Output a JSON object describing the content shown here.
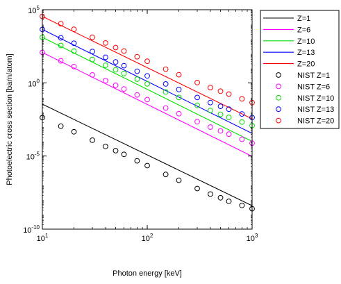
{
  "chart_data": {
    "type": "line",
    "xlabel": "Photon energy [keV]",
    "ylabel": "Photoelectric cross section [barn/atom]",
    "xscale": "log",
    "yscale": "log",
    "xlim": [
      10,
      1000
    ],
    "ylim": [
      1e-10,
      100000
    ],
    "grid": false,
    "legend_position": "outside-top-right",
    "x_ticks": [
      {
        "value": 10,
        "base": "10",
        "exp": "1"
      },
      {
        "value": 100,
        "base": "10",
        "exp": "2"
      },
      {
        "value": 1000,
        "base": "10",
        "exp": "3"
      }
    ],
    "y_ticks": [
      {
        "value": 1e-10,
        "base": "10",
        "exp": "-10"
      },
      {
        "value": 1e-05,
        "base": "10",
        "exp": "-5"
      },
      {
        "value": 1,
        "base": "10",
        "exp": "0"
      },
      {
        "value": 100000,
        "base": "10",
        "exp": "5"
      }
    ],
    "model_series": [
      {
        "name": "Z=1",
        "color": "#000000",
        "x": [
          10,
          1000
        ],
        "y": [
          0.035,
          4e-09
        ]
      },
      {
        "name": "Z=6",
        "color": "#ff00ff",
        "x": [
          10,
          1000
        ],
        "y": [
          120,
          9.5e-06
        ]
      },
      {
        "name": "Z=10",
        "color": "#00dd00",
        "x": [
          10,
          1000
        ],
        "y": [
          1300,
          0.0001
        ]
      },
      {
        "name": "Z=13",
        "color": "#0000ff",
        "x": [
          10,
          1000
        ],
        "y": [
          4500,
          0.00035
        ]
      },
      {
        "name": "Z=20",
        "color": "#ff0000",
        "x": [
          10,
          1000
        ],
        "y": [
          35000,
          0.0035
        ]
      }
    ],
    "nist_series": [
      {
        "name": "NIST Z=1",
        "color": "#000000",
        "x": [
          10,
          15,
          20,
          30,
          40,
          50,
          60,
          80,
          100,
          150,
          200,
          300,
          400,
          500,
          600,
          800,
          1000
        ],
        "y": [
          0.0042,
          0.0011,
          0.00045,
          0.00012,
          4.5e-05,
          2.3e-05,
          1.3e-05,
          4.7e-06,
          2.2e-06,
          5.5e-07,
          2.2e-07,
          6e-08,
          2.5e-08,
          1.4e-08,
          8e-09,
          4.2e-09,
          2.5e-09
        ]
      },
      {
        "name": "NIST Z=6",
        "color": "#ff00ff",
        "x": [
          10,
          15,
          20,
          30,
          40,
          50,
          60,
          80,
          100,
          150,
          200,
          300,
          400,
          500,
          600,
          800,
          1000
        ],
        "y": [
          120,
          32,
          13,
          3.5,
          1.4,
          0.68,
          0.38,
          0.15,
          0.072,
          0.019,
          0.0078,
          0.0022,
          0.00095,
          0.00052,
          0.00031,
          0.00014,
          7.5e-05
        ]
      },
      {
        "name": "NIST Z=10",
        "color": "#00dd00",
        "x": [
          10,
          15,
          20,
          30,
          40,
          50,
          60,
          80,
          100,
          150,
          200,
          300,
          400,
          500,
          600,
          800,
          1000
        ],
        "y": [
          1300,
          360,
          150,
          40,
          16,
          7.8,
          4.4,
          1.8,
          0.86,
          0.24,
          0.1,
          0.029,
          0.013,
          0.0071,
          0.0044,
          0.0021,
          0.0012
        ]
      },
      {
        "name": "NIST Z=13",
        "color": "#0000ff",
        "x": [
          10,
          15,
          20,
          30,
          40,
          50,
          60,
          80,
          100,
          150,
          200,
          300,
          400,
          500,
          600,
          800,
          1000
        ],
        "y": [
          4500,
          1200,
          510,
          140,
          56,
          27,
          15,
          6.2,
          3.0,
          0.84,
          0.35,
          0.1,
          0.045,
          0.025,
          0.016,
          0.0075,
          0.0042
        ]
      },
      {
        "name": "NIST Z=20",
        "color": "#ff0000",
        "x": [
          10,
          15,
          20,
          30,
          40,
          50,
          60,
          80,
          100,
          150,
          200,
          300,
          400,
          500,
          600,
          800,
          1000
        ],
        "y": [
          35000,
          11000,
          4600,
          1300,
          530,
          260,
          150,
          61,
          30,
          8.6,
          3.6,
          1.05,
          0.47,
          0.27,
          0.17,
          0.08,
          0.045
        ]
      }
    ],
    "legend": [
      {
        "label": "Z=1",
        "kind": "line",
        "color": "#000000"
      },
      {
        "label": "Z=6",
        "kind": "line",
        "color": "#ff00ff"
      },
      {
        "label": "Z=10",
        "kind": "line",
        "color": "#00dd00"
      },
      {
        "label": "Z=13",
        "kind": "line",
        "color": "#0000ff"
      },
      {
        "label": "Z=20",
        "kind": "line",
        "color": "#ff0000"
      },
      {
        "label": "NIST Z=1",
        "kind": "marker",
        "color": "#000000"
      },
      {
        "label": "NIST Z=6",
        "kind": "marker",
        "color": "#ff00ff"
      },
      {
        "label": "NIST Z=10",
        "kind": "marker",
        "color": "#00dd00"
      },
      {
        "label": "NIST Z=13",
        "kind": "marker",
        "color": "#0000ff"
      },
      {
        "label": "NIST Z=20",
        "kind": "marker",
        "color": "#ff0000"
      }
    ]
  }
}
